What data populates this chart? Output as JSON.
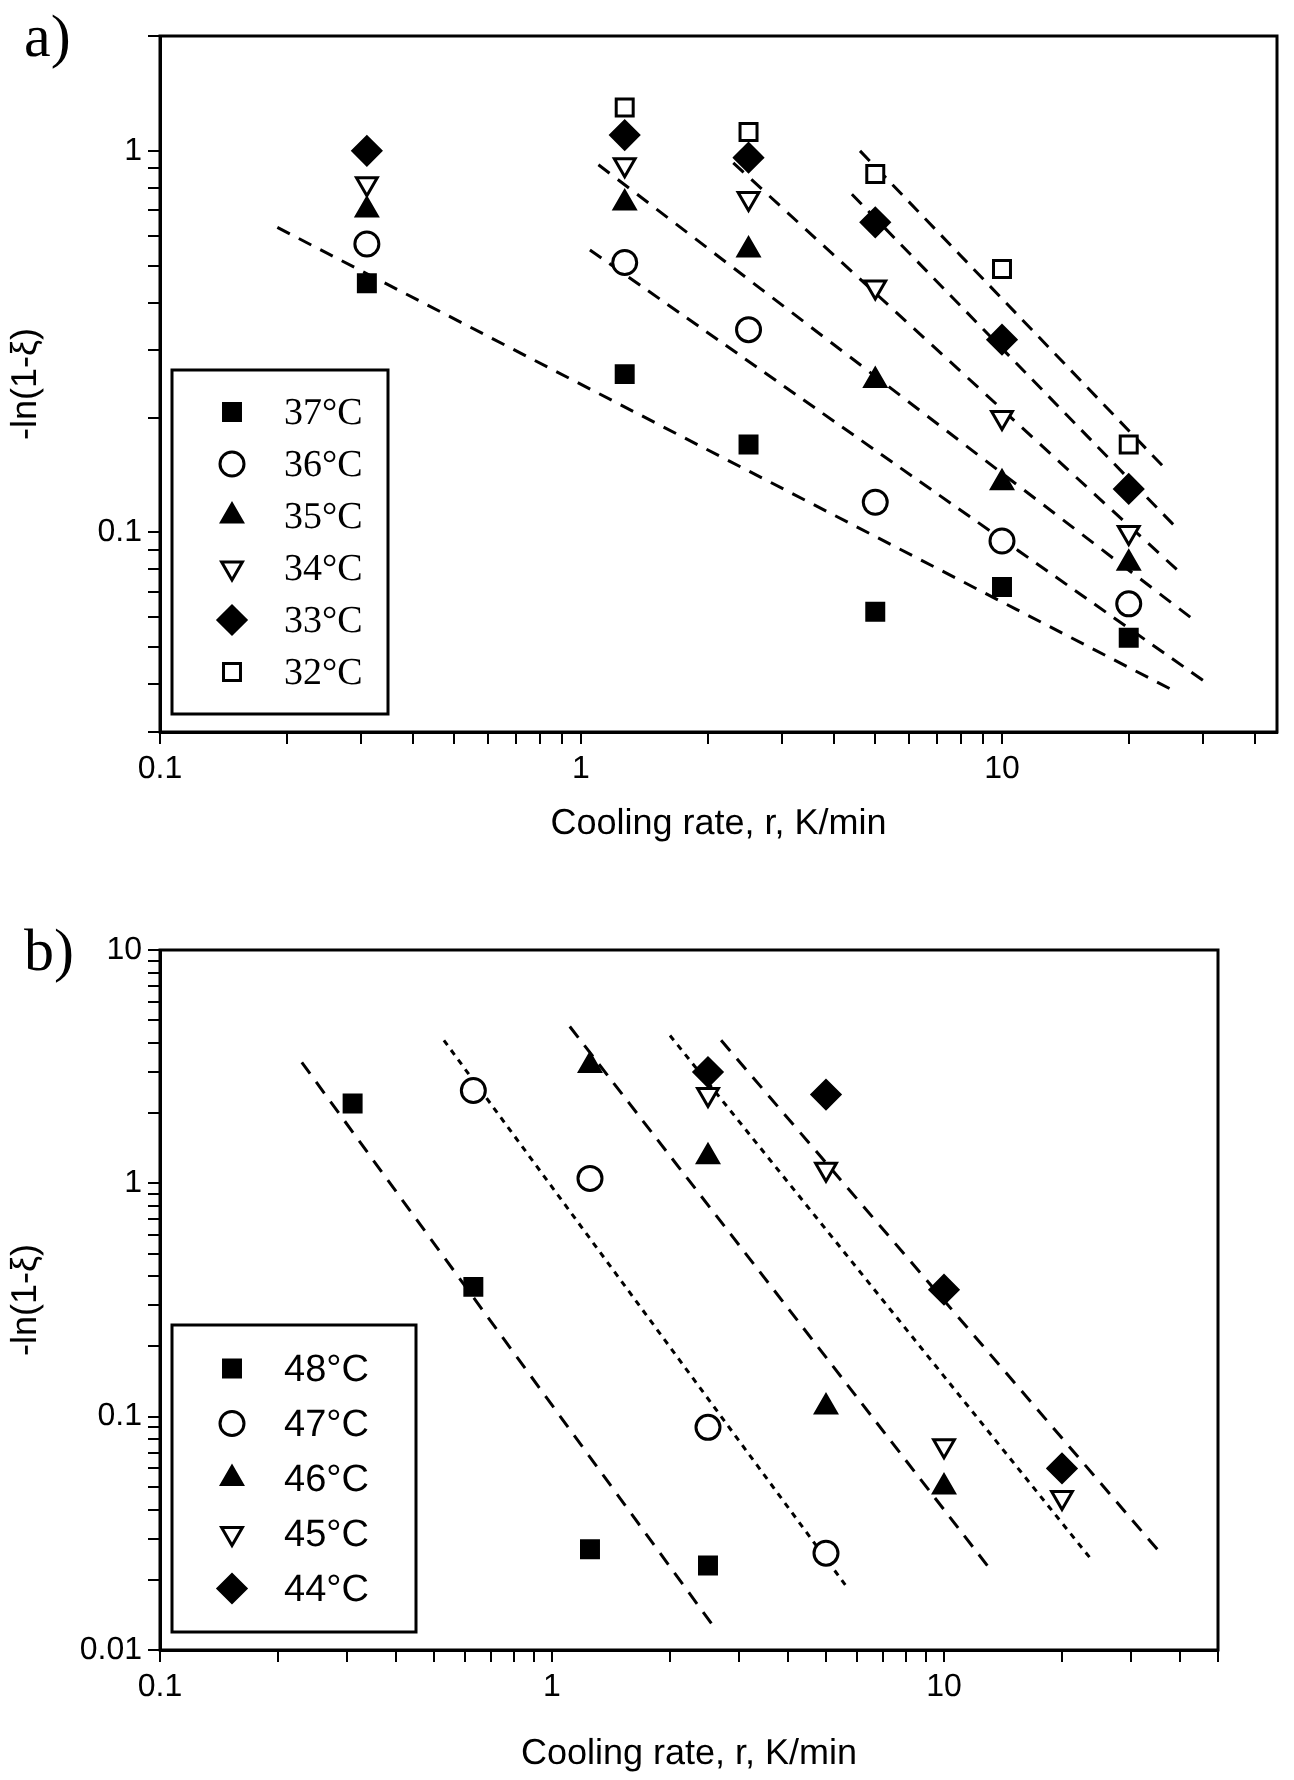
{
  "chart_data": [
    {
      "type": "scatter",
      "title": "a)",
      "xlabel": "Cooling rate, r, K/min",
      "ylabel": "-ln(1-ξ)",
      "log": "xy",
      "grid": false,
      "legend": "bottom left",
      "xlim": [
        0.1,
        45
      ],
      "ylim": [
        0.03,
        2
      ],
      "xticks": [
        0.1,
        {
          "value": 0.2,
          "label": null
        },
        {
          "value": 0.3,
          "label": null
        },
        {
          "value": 0.4,
          "label": null
        },
        {
          "value": 0.5,
          "label": null
        },
        {
          "value": 0.6,
          "label": null
        },
        {
          "value": 0.7,
          "label": null
        },
        {
          "value": 0.8,
          "label": null
        },
        {
          "value": 0.9,
          "label": null
        },
        1,
        {
          "value": 2,
          "label": null
        },
        {
          "value": 3,
          "label": null
        },
        {
          "value": 4,
          "label": null
        },
        {
          "value": 5,
          "label": null
        },
        {
          "value": 6,
          "label": null
        },
        {
          "value": 7,
          "label": null
        },
        {
          "value": 8,
          "label": null
        },
        {
          "value": 9,
          "label": null
        },
        10,
        {
          "value": 20,
          "label": null
        },
        {
          "value": 30,
          "label": null
        },
        {
          "value": 40,
          "label": null
        }
      ],
      "yticks": [
        {
          "value": 0.03,
          "label": null
        },
        {
          "value": 0.04,
          "label": null
        },
        {
          "value": 0.05,
          "label": null
        },
        {
          "value": 0.06,
          "label": null
        },
        {
          "value": 0.07,
          "label": null
        },
        {
          "value": 0.08,
          "label": null
        },
        {
          "value": 0.09,
          "label": null
        },
        0.1,
        {
          "value": 0.2,
          "label": null
        },
        {
          "value": 0.3,
          "label": null
        },
        {
          "value": 0.4,
          "label": null
        },
        {
          "value": 0.5,
          "label": null
        },
        {
          "value": 0.6,
          "label": null
        },
        {
          "value": 0.7,
          "label": null
        },
        {
          "value": 0.8,
          "label": null
        },
        {
          "value": 0.9,
          "label": null
        },
        1,
        {
          "value": 2,
          "label": null
        }
      ],
      "series": [
        {
          "name": "37°C",
          "color": "#000000",
          "marker": "square",
          "x": [
            0.31,
            1.27,
            2.5,
            5,
            10,
            20
          ],
          "values": [
            0.45,
            0.26,
            0.17,
            0.062,
            0.072,
            0.053
          ]
        },
        {
          "name": "36°C",
          "color": "#000000",
          "marker": "circle-open",
          "x": [
            0.31,
            1.27,
            2.5,
            5,
            10,
            20
          ],
          "values": [
            0.57,
            0.51,
            0.34,
            0.12,
            0.095,
            0.065
          ]
        },
        {
          "name": "35°C",
          "color": "#000000",
          "marker": "triangle",
          "x": [
            0.31,
            1.27,
            2.5,
            5,
            10,
            20
          ],
          "values": [
            0.7,
            0.73,
            0.55,
            0.25,
            0.135,
            0.083
          ]
        },
        {
          "name": "34°C",
          "color": "#000000",
          "marker": "triangle-down-open",
          "x": [
            0.31,
            1.27,
            2.5,
            5,
            10,
            20
          ],
          "values": [
            0.82,
            0.92,
            0.75,
            0.44,
            0.2,
            0.1
          ]
        },
        {
          "name": "33°C",
          "color": "#000000",
          "marker": "diamond",
          "x": [
            0.31,
            1.27,
            2.5,
            5,
            10,
            20
          ],
          "values": [
            1.0,
            1.1,
            0.96,
            0.65,
            0.32,
            0.13
          ]
        },
        {
          "name": "32°C",
          "color": "#000000",
          "marker": "square-open",
          "x": [
            1.27,
            2.5,
            5,
            10,
            20
          ],
          "values": [
            1.3,
            1.12,
            0.87,
            0.49,
            0.17
          ]
        },
        {
          "type": "line",
          "color": "#000000",
          "line_style": "dashed",
          "marker": "none",
          "x": [
            0.19,
            25
          ],
          "values": [
            0.63,
            0.039
          ]
        },
        {
          "type": "line",
          "color": "#000000",
          "line_style": "dashed",
          "marker": "none",
          "x": [
            1.05,
            30
          ],
          "values": [
            0.55,
            0.041
          ]
        },
        {
          "type": "line",
          "color": "#000000",
          "line_style": "dashed",
          "marker": "none",
          "x": [
            1.1,
            28
          ],
          "values": [
            0.92,
            0.06
          ]
        },
        {
          "type": "line",
          "color": "#000000",
          "line_style": "dashed",
          "marker": "none",
          "x": [
            2.3,
            26
          ],
          "values": [
            0.93,
            0.08
          ]
        },
        {
          "type": "line",
          "color": "#000000",
          "line_style": "dashed",
          "marker": "none",
          "x": [
            4.4,
            25.5
          ],
          "values": [
            0.77,
            0.105
          ]
        },
        {
          "type": "line",
          "color": "#000000",
          "line_style": "dashed",
          "marker": "none",
          "x": [
            4.6,
            24
          ],
          "values": [
            1.0,
            0.15
          ]
        }
      ]
    },
    {
      "type": "scatter",
      "title": "b)",
      "xlabel": "Cooling rate, r, K/min",
      "ylabel": "-ln(1-ξ)",
      "log": "xy",
      "grid": false,
      "legend": "bottom left",
      "xlim": [
        0.1,
        50
      ],
      "ylim": [
        0.01,
        10
      ],
      "xticks": [
        0.1,
        {
          "value": 0.2,
          "label": null
        },
        {
          "value": 0.3,
          "label": null
        },
        {
          "value": 0.4,
          "label": null
        },
        {
          "value": 0.5,
          "label": null
        },
        {
          "value": 0.6,
          "label": null
        },
        {
          "value": 0.7,
          "label": null
        },
        {
          "value": 0.8,
          "label": null
        },
        {
          "value": 0.9,
          "label": null
        },
        1,
        {
          "value": 2,
          "label": null
        },
        {
          "value": 3,
          "label": null
        },
        {
          "value": 4,
          "label": null
        },
        {
          "value": 5,
          "label": null
        },
        {
          "value": 6,
          "label": null
        },
        {
          "value": 7,
          "label": null
        },
        {
          "value": 8,
          "label": null
        },
        {
          "value": 9,
          "label": null
        },
        10,
        {
          "value": 20,
          "label": null
        },
        {
          "value": 30,
          "label": null
        },
        {
          "value": 40,
          "label": null
        },
        {
          "value": 50,
          "label": null
        }
      ],
      "yticks": [
        0.01,
        {
          "value": 0.02,
          "label": null
        },
        {
          "value": 0.03,
          "label": null
        },
        {
          "value": 0.04,
          "label": null
        },
        {
          "value": 0.05,
          "label": null
        },
        {
          "value": 0.06,
          "label": null
        },
        {
          "value": 0.07,
          "label": null
        },
        {
          "value": 0.08,
          "label": null
        },
        {
          "value": 0.09,
          "label": null
        },
        0.1,
        {
          "value": 0.2,
          "label": null
        },
        {
          "value": 0.3,
          "label": null
        },
        {
          "value": 0.4,
          "label": null
        },
        {
          "value": 0.5,
          "label": null
        },
        {
          "value": 0.6,
          "label": null
        },
        {
          "value": 0.7,
          "label": null
        },
        {
          "value": 0.8,
          "label": null
        },
        {
          "value": 0.9,
          "label": null
        },
        1,
        {
          "value": 2,
          "label": null
        },
        {
          "value": 3,
          "label": null
        },
        {
          "value": 4,
          "label": null
        },
        {
          "value": 5,
          "label": null
        },
        {
          "value": 6,
          "label": null
        },
        {
          "value": 7,
          "label": null
        },
        {
          "value": 8,
          "label": null
        },
        {
          "value": 9,
          "label": null
        },
        10
      ],
      "series": [
        {
          "name": "48°C",
          "color": "#000000",
          "marker": "square",
          "x": [
            0.31,
            0.63,
            1.25,
            2.5
          ],
          "values": [
            2.2,
            0.36,
            0.027,
            0.023
          ]
        },
        {
          "name": "47°C",
          "color": "#000000",
          "marker": "circle-open",
          "x": [
            0.63,
            1.25,
            2.5,
            5
          ],
          "values": [
            2.5,
            1.05,
            0.09,
            0.026
          ]
        },
        {
          "name": "46°C",
          "color": "#000000",
          "marker": "triangle",
          "x": [
            1.25,
            2.5,
            5,
            10
          ],
          "values": [
            3.2,
            1.3,
            0.11,
            0.05
          ]
        },
        {
          "name": "45°C",
          "color": "#000000",
          "marker": "triangle-down-open",
          "x": [
            2.5,
            5,
            10,
            20
          ],
          "values": [
            2.4,
            1.15,
            0.075,
            0.045
          ]
        },
        {
          "name": "44°C",
          "color": "#000000",
          "marker": "diamond",
          "x": [
            2.5,
            5,
            10,
            20
          ],
          "values": [
            3.0,
            2.4,
            0.35,
            0.06
          ]
        },
        {
          "type": "line",
          "color": "#000000",
          "line_style": "dashed",
          "marker": "none",
          "x": [
            0.23,
            2.55
          ],
          "values": [
            3.3,
            0.013
          ]
        },
        {
          "type": "line",
          "color": "#000000",
          "line_style": "dotted",
          "marker": "none",
          "x": [
            0.53,
            5.6
          ],
          "values": [
            4.1,
            0.019
          ]
        },
        {
          "type": "line",
          "color": "#000000",
          "line_style": "dashed",
          "marker": "none",
          "x": [
            1.11,
            12.9
          ],
          "values": [
            4.7,
            0.023
          ]
        },
        {
          "type": "line",
          "color": "#000000",
          "line_style": "dotted",
          "marker": "none",
          "x": [
            2.0,
            23.5
          ],
          "values": [
            4.3,
            0.025
          ]
        },
        {
          "type": "line",
          "color": "#000000",
          "line_style": "dashed",
          "marker": "none",
          "x": [
            2.7,
            35
          ],
          "values": [
            4.1,
            0.027
          ]
        }
      ]
    }
  ]
}
